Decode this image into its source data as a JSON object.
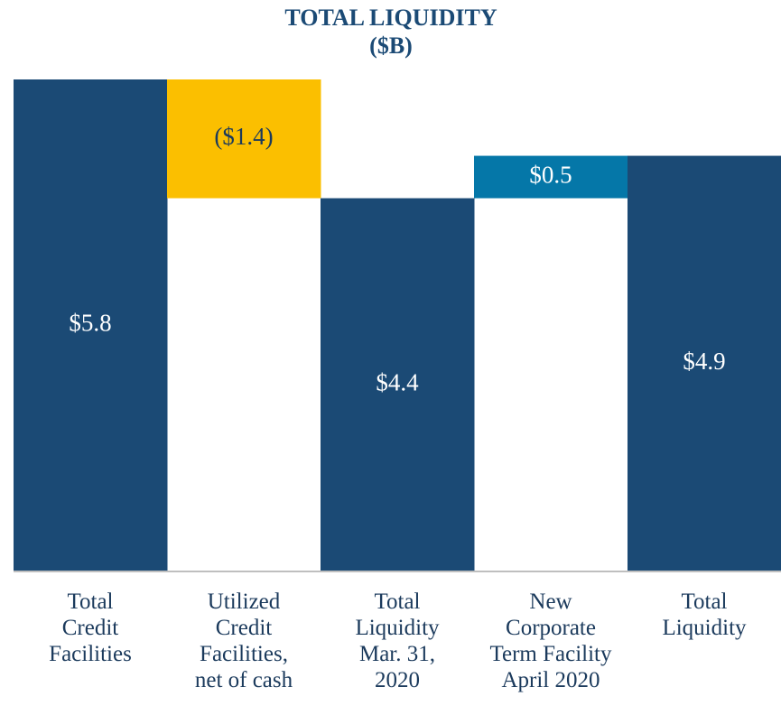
{
  "chart_data": {
    "type": "waterfall",
    "title": "TOTAL LIQUIDITY",
    "subtitle": "($B)",
    "categories": [
      "Total\nCredit\nFacilities",
      "Utilized\nCredit\nFacilities,\nnet of cash",
      "Total\nLiquidity\nMar. 31,\n2020",
      "New\nCorporate\nTerm Facility\nApril 2020",
      "Total\nLiquidity"
    ],
    "values": [
      5.8,
      -1.4,
      4.4,
      0.5,
      4.9
    ],
    "value_labels": [
      "$5.8",
      "($1.4)",
      "$4.4",
      "$0.5",
      "$4.9"
    ],
    "totals": [
      true,
      false,
      true,
      false,
      true
    ],
    "colors": [
      "#1b4a75",
      "#fbbf00",
      "#1b4a75",
      "#0577a8",
      "#1b4a75"
    ],
    "ylim": [
      0,
      5.8
    ]
  }
}
